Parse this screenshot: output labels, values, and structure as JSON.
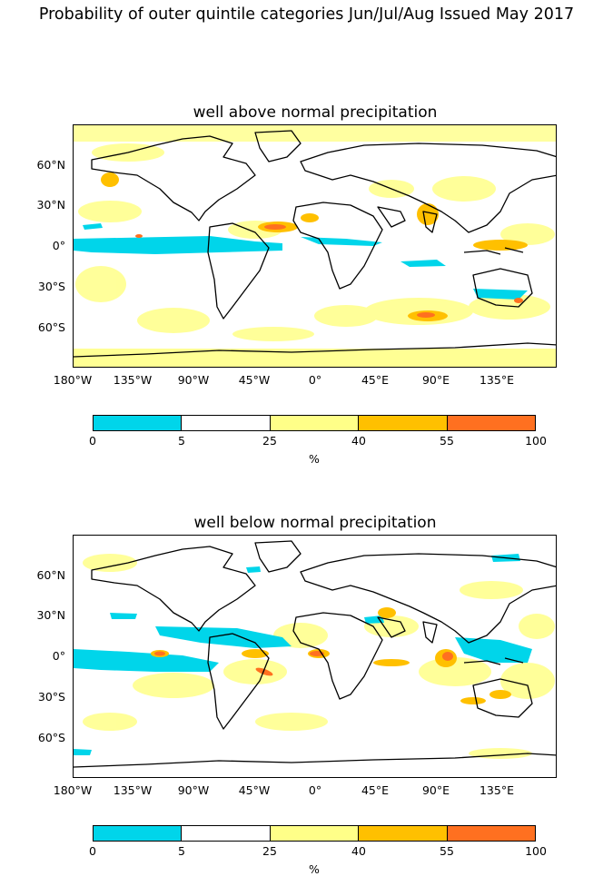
{
  "suptitle": "Probability of outer quintile categories Jun/Jul/Aug Issued May 2017",
  "panels": [
    {
      "title": "well above normal precipitation"
    },
    {
      "title": "well below normal precipitation"
    }
  ],
  "lat_labels": [
    "60°N",
    "30°N",
    "0°",
    "30°S",
    "60°S"
  ],
  "lon_labels": [
    "180°W",
    "135°W",
    "90°W",
    "45°W",
    "0°",
    "45°E",
    "90°E",
    "135°E"
  ],
  "colorbar": {
    "ticks": [
      "0",
      "5",
      "25",
      "40",
      "55",
      "100"
    ],
    "label": "%",
    "colors": [
      "#00d5ea",
      "#ffffff",
      "#ffff88",
      "#ffc000",
      "#ff7020"
    ]
  },
  "colors": {
    "cyan": "#00d5ea",
    "light_yellow": "#ffff88",
    "gold": "#ffc000",
    "orange": "#ff7020"
  }
}
